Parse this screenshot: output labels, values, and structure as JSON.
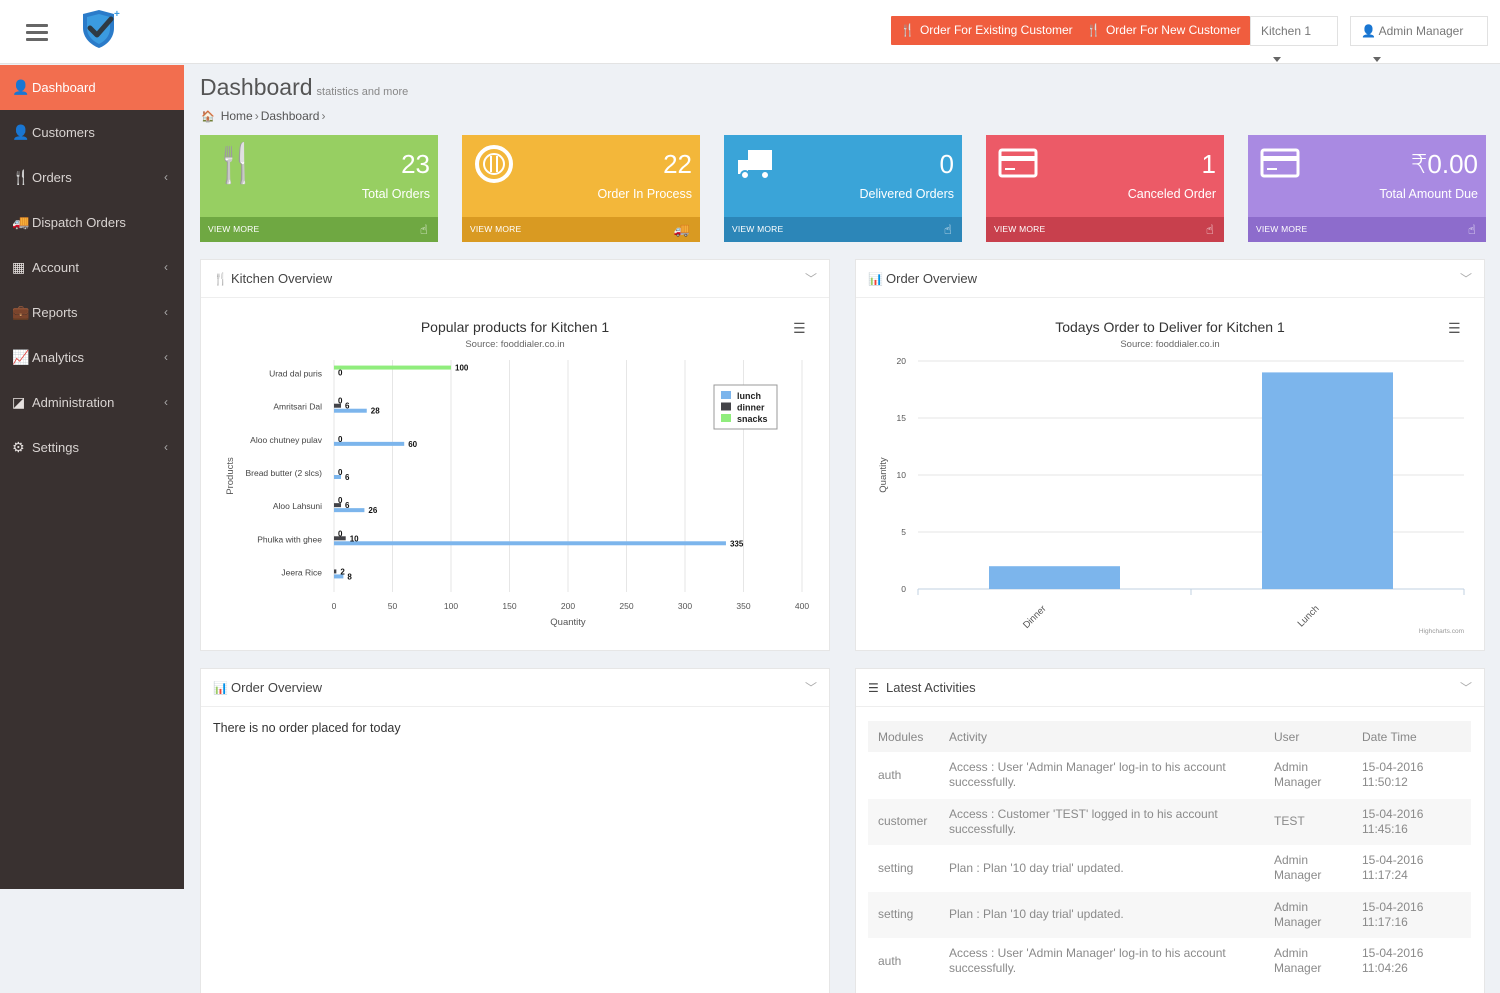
{
  "header": {
    "btn_existing": "Order For Existing Customer",
    "btn_new": "Order For New Customer",
    "kitchen_select": "Kitchen 1",
    "user_menu": "Admin Manager"
  },
  "sidebar": {
    "items": [
      {
        "label": "Dashboard",
        "icon": "user-icon",
        "active": true
      },
      {
        "label": "Customers",
        "icon": "user-icon"
      },
      {
        "label": "Orders",
        "icon": "cutlery-icon",
        "arrow": "‹"
      },
      {
        "label": "Dispatch Orders",
        "icon": "truck-icon"
      },
      {
        "label": "Account",
        "icon": "grid-icon",
        "arrow": "‹"
      },
      {
        "label": "Reports",
        "icon": "briefcase-icon",
        "arrow": "‹"
      },
      {
        "label": "Analytics",
        "icon": "line-chart-icon",
        "arrow": "‹"
      },
      {
        "label": "Administration",
        "icon": "admin-icon",
        "arrow": "‹"
      },
      {
        "label": "Settings",
        "icon": "cogs-icon",
        "arrow": "‹"
      }
    ]
  },
  "page": {
    "title": "Dashboard",
    "subtitle": "statistics and more",
    "breadcrumb": [
      "Home",
      "Dashboard"
    ]
  },
  "tiles": [
    {
      "value": "23",
      "label": "Total Orders",
      "footer": "VIEW MORE",
      "color": "#97cf62"
    },
    {
      "value": "22",
      "label": "Order In Process",
      "footer": "VIEW MORE",
      "color": "#f3b73a"
    },
    {
      "value": "0",
      "label": "Delivered Orders",
      "footer": "VIEW MORE",
      "color": "#3aa4d8"
    },
    {
      "value": "1",
      "label": "Canceled Order",
      "footer": "VIEW MORE",
      "color": "#ec5a67"
    },
    {
      "value": "₹0.00",
      "label": "Total Amount Due",
      "footer": "VIEW MORE",
      "color": "#a98ae2"
    }
  ],
  "panels": {
    "kitchen_overview": "Kitchen Overview",
    "order_overview_chart": "Order Overview",
    "order_overview_list": "Order Overview",
    "latest_activities": "Latest Activities",
    "no_orders_msg": "There is no order placed for today"
  },
  "chart_data": [
    {
      "type": "bar",
      "orientation": "horizontal",
      "title": "Popular products for Kitchen 1",
      "subtitle": "Source: fooddialer.co.in",
      "xlabel": "Quantity",
      "ylabel": "Products",
      "xlim": [
        0,
        400
      ],
      "xticks": [
        0,
        50,
        100,
        150,
        200,
        250,
        300,
        350,
        400
      ],
      "categories": [
        "Urad dal puris",
        "Amritsari Dal",
        "Aloo chutney pulav",
        "Bread butter (2 slcs)",
        "Aloo Lahsuni",
        "Phulka with ghee",
        "Jeera Rice"
      ],
      "series": [
        {
          "name": "lunch",
          "color": "#7cb5ec",
          "values": [
            null,
            28,
            60,
            6,
            26,
            335,
            8
          ]
        },
        {
          "name": "dinner",
          "color": "#434348",
          "values": [
            0,
            6,
            0,
            0,
            6,
            10,
            2
          ]
        },
        {
          "name": "snacks",
          "color": "#90ed7d",
          "values": [
            100,
            0,
            null,
            null,
            0,
            0,
            null
          ]
        }
      ],
      "legend": "top-right",
      "grid": true
    },
    {
      "type": "bar",
      "title": "Todays Order to Deliver for Kitchen 1",
      "subtitle": "Source: fooddialer.co.in",
      "ylabel": "Quantity",
      "ylim": [
        0,
        20
      ],
      "yticks": [
        0,
        5,
        10,
        15,
        20
      ],
      "categories": [
        "Dinner",
        "Lunch"
      ],
      "values": [
        2,
        19
      ],
      "color": "#7cb5ec",
      "credit": "Highcharts.com",
      "grid": true
    }
  ],
  "activities": {
    "columns": [
      "Modules",
      "Activity",
      "User",
      "Date Time"
    ],
    "rows": [
      {
        "module": "auth",
        "activity": "Access : User 'Admin Manager' log-in to his account successfully.",
        "user": "Admin Manager",
        "datetime": "15-04-2016 11:50:12"
      },
      {
        "module": "customer",
        "activity": "Access : Customer 'TEST' logged in to his account successfully.",
        "user": "TEST",
        "datetime": "15-04-2016 11:45:16"
      },
      {
        "module": "setting",
        "activity": "Plan : Plan '10 day trial' updated.",
        "user": "Admin Manager",
        "datetime": "15-04-2016 11:17:24"
      },
      {
        "module": "setting",
        "activity": "Plan : Plan '10 day trial' updated.",
        "user": "Admin Manager",
        "datetime": "15-04-2016 11:17:16"
      },
      {
        "module": "auth",
        "activity": "Access : User 'Admin Manager' log-in to his account successfully.",
        "user": "Admin Manager",
        "datetime": "15-04-2016 11:04:26"
      }
    ]
  }
}
